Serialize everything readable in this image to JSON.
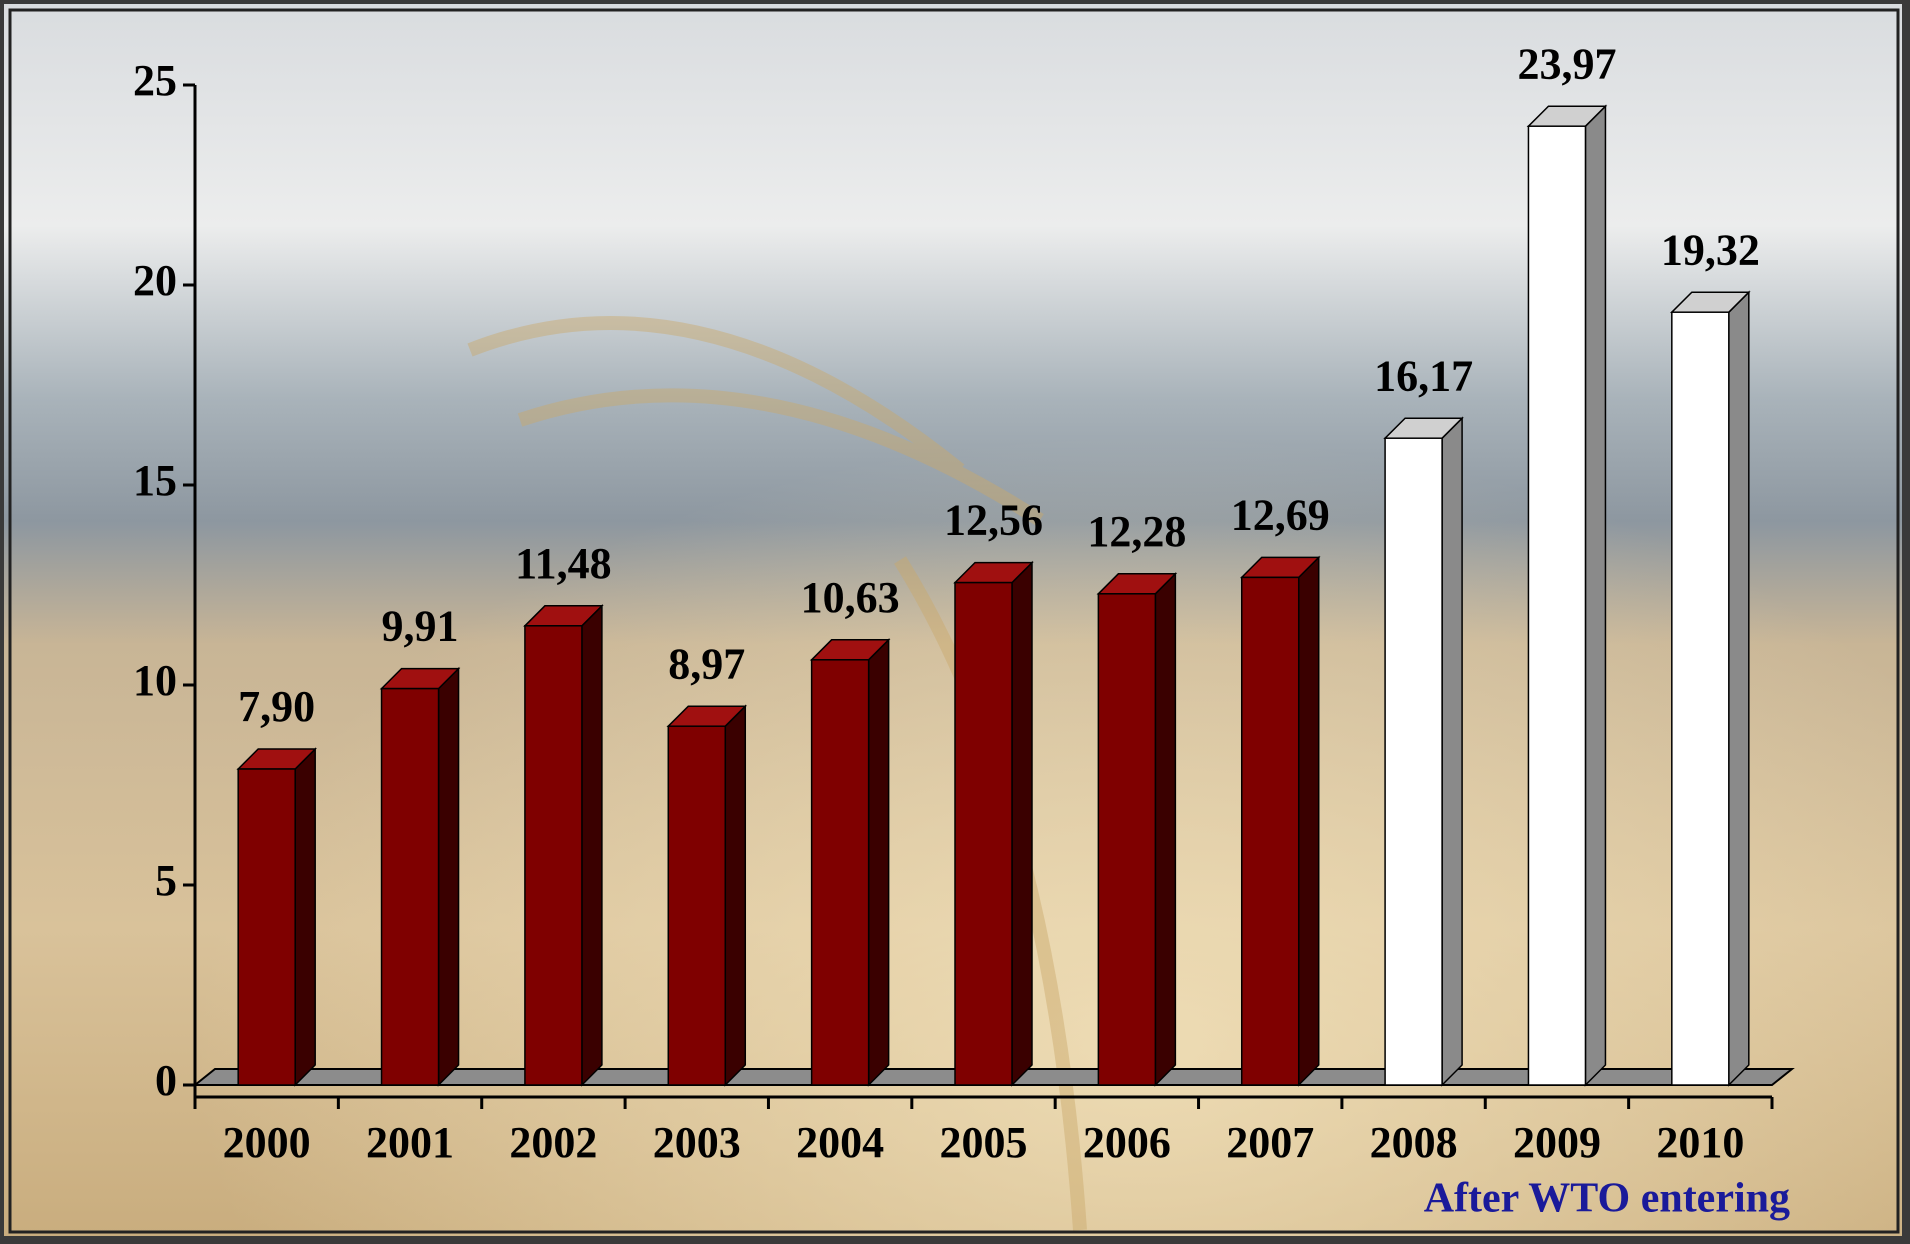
{
  "chart_data": {
    "type": "bar3d",
    "categories": [
      "2000",
      "2001",
      "2002",
      "2003",
      "2004",
      "2005",
      "2006",
      "2007",
      "2008",
      "2009",
      "2010"
    ],
    "values": [
      7.9,
      9.91,
      11.48,
      8.97,
      10.63,
      12.56,
      12.28,
      12.69,
      16.17,
      23.97,
      19.32
    ],
    "value_labels": [
      "7,90",
      "9,91",
      "11,48",
      "8,97",
      "10,63",
      "12,56",
      "12,28",
      "12,69",
      "16,17",
      "23,97",
      "19,32"
    ],
    "colors": [
      "#7f0000",
      "#7f0000",
      "#7f0000",
      "#7f0000",
      "#7f0000",
      "#7f0000",
      "#7f0000",
      "#7f0000",
      "#ffffff",
      "#ffffff",
      "#ffffff"
    ],
    "ylim": [
      0,
      25
    ],
    "yticks": [
      0,
      5,
      10,
      15,
      20,
      25
    ],
    "annotation": "After WTO entering",
    "annotation_color": "#1a1a9a"
  }
}
